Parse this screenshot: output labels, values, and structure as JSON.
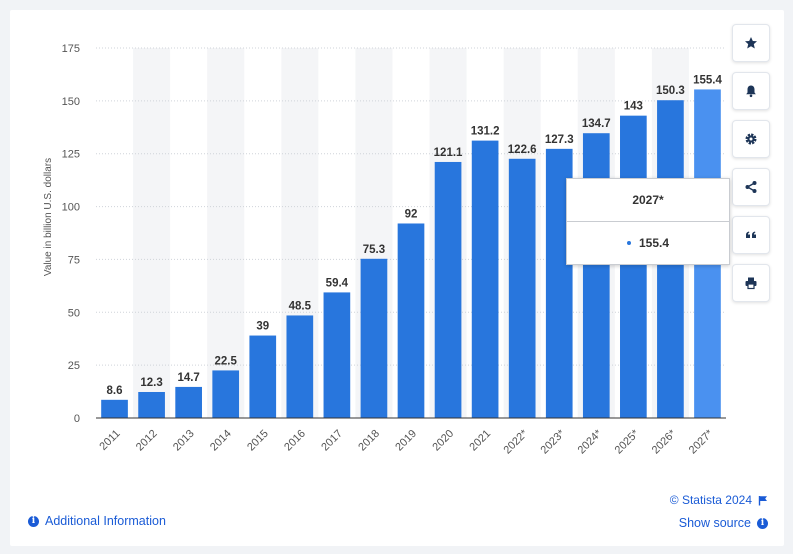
{
  "chart_data": {
    "type": "bar",
    "title": "",
    "xlabel": "",
    "ylabel": "Value in billion U.S. dollars",
    "ylim": [
      0,
      175
    ],
    "yticks": [
      0,
      25,
      50,
      75,
      100,
      125,
      150,
      175
    ],
    "grid": true,
    "categories": [
      "2011",
      "2012",
      "2013",
      "2014",
      "2015",
      "2016",
      "2017",
      "2018",
      "2019",
      "2020",
      "2021",
      "2022*",
      "2023*",
      "2024*",
      "2025*",
      "2026*",
      "2027*"
    ],
    "values": [
      8.6,
      12.3,
      14.7,
      22.5,
      39,
      48.5,
      59.4,
      75.3,
      92,
      121.1,
      131.2,
      122.6,
      127.3,
      134.7,
      143,
      150.3,
      155.4
    ],
    "value_labels": [
      "8.6",
      "12.3",
      "14.7",
      "22.5",
      "39",
      "48.5",
      "59.4",
      "75.3",
      "92",
      "121.1",
      "131.2",
      "122.6",
      "127.3",
      "134.7",
      "143",
      "150.3",
      "155.4"
    ],
    "highlighted_index": 16,
    "colors": {
      "bar": "#2876dd",
      "bar_highlight": "#4a91f0",
      "band": "#f4f5f7",
      "grid": "#cfd3d9",
      "axis": "#333333"
    }
  },
  "tooltip": {
    "title": "2027*",
    "value": "155.4",
    "dot_color": "#2876dd"
  },
  "toolbar": {
    "buttons": [
      {
        "name": "favorite-button",
        "icon": "star-icon",
        "glyph": "★"
      },
      {
        "name": "notification-button",
        "icon": "bell-icon",
        "glyph": "bell"
      },
      {
        "name": "settings-button",
        "icon": "gear-icon",
        "glyph": "gear"
      },
      {
        "name": "share-button",
        "icon": "share-icon",
        "glyph": "share"
      },
      {
        "name": "cite-button",
        "icon": "quote-icon",
        "glyph": "❝"
      },
      {
        "name": "print-button",
        "icon": "printer-icon",
        "glyph": "print"
      }
    ]
  },
  "footer": {
    "additional_info": "Additional Information",
    "copyright": "© Statista 2024",
    "show_source": "Show source"
  }
}
